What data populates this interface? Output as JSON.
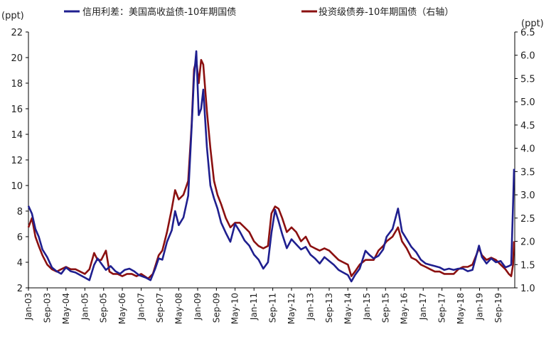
{
  "chart_data": {
    "type": "line",
    "axis_unit_left": "(ppt)",
    "axis_unit_right": "(ppt)",
    "legend": {
      "placement": "top",
      "items": [
        {
          "label": "信用利差：美国高收益债-10年期国债",
          "color": "#1f1f8f"
        },
        {
          "label": "投资级债券-10年期国债（右轴）",
          "color": "#8b1010"
        }
      ]
    },
    "x_ticks": [
      "Jan-03",
      "Sep-03",
      "May-04",
      "Jan-05",
      "Sep-05",
      "May-06",
      "Jan-07",
      "Sep-07",
      "May-08",
      "Jan-09",
      "Sep-09",
      "May-10",
      "Jan-11",
      "Sep-11",
      "May-12",
      "Jan-13",
      "Sep-13",
      "May-14",
      "Jan-15",
      "Sep-15",
      "May-16",
      "Jan-17",
      "Sep-17",
      "May-18",
      "Jan-19",
      "Sep-19"
    ],
    "y_left": {
      "min": 2,
      "max": 22,
      "ticks": [
        2,
        4,
        6,
        8,
        10,
        12,
        14,
        16,
        18,
        20,
        22
      ]
    },
    "y_right": {
      "min": 1.0,
      "max": 6.5,
      "ticks": [
        "1.0",
        "1.5",
        "2.0",
        "2.5",
        "3.0",
        "3.5",
        "4.0",
        "4.5",
        "5.0",
        "5.5",
        "6.0",
        "6.5"
      ],
      "tick_values": [
        1.0,
        1.5,
        2.0,
        2.5,
        3.0,
        3.5,
        4.0,
        4.5,
        5.0,
        5.5,
        6.0,
        6.5
      ]
    },
    "grid": false,
    "series": [
      {
        "name": "信用利差：美国高收益债-10年期国债",
        "axis": "left",
        "color": "#1f1f8f",
        "points": [
          [
            "2003-01-01",
            8.4
          ],
          [
            "2003-02-15",
            7.8
          ],
          [
            "2003-04-01",
            6.6
          ],
          [
            "2003-05-15",
            6.0
          ],
          [
            "2003-07-01",
            5.0
          ],
          [
            "2003-09-01",
            4.4
          ],
          [
            "2003-11-01",
            3.6
          ],
          [
            "2004-01-01",
            3.3
          ],
          [
            "2004-03-01",
            3.1
          ],
          [
            "2004-05-01",
            3.6
          ],
          [
            "2004-07-01",
            3.3
          ],
          [
            "2004-09-01",
            3.2
          ],
          [
            "2004-11-01",
            3.0
          ],
          [
            "2005-01-01",
            2.8
          ],
          [
            "2005-03-01",
            2.6
          ],
          [
            "2005-05-01",
            3.8
          ],
          [
            "2005-06-15",
            4.3
          ],
          [
            "2005-08-01",
            3.9
          ],
          [
            "2005-10-01",
            3.4
          ],
          [
            "2005-12-01",
            3.7
          ],
          [
            "2006-02-01",
            3.3
          ],
          [
            "2006-04-01",
            3.1
          ],
          [
            "2006-06-01",
            3.4
          ],
          [
            "2006-08-01",
            3.5
          ],
          [
            "2006-10-01",
            3.3
          ],
          [
            "2006-12-01",
            3.0
          ],
          [
            "2007-03-01",
            2.8
          ],
          [
            "2007-05-01",
            2.6
          ],
          [
            "2007-07-01",
            3.5
          ],
          [
            "2007-08-15",
            4.3
          ],
          [
            "2007-10-01",
            4.2
          ],
          [
            "2007-12-01",
            5.6
          ],
          [
            "2008-02-01",
            6.5
          ],
          [
            "2008-03-15",
            8.0
          ],
          [
            "2008-05-01",
            6.9
          ],
          [
            "2008-07-01",
            7.5
          ],
          [
            "2008-09-01",
            9.2
          ],
          [
            "2008-10-15",
            14.5
          ],
          [
            "2008-11-15",
            18.5
          ],
          [
            "2008-12-15",
            20.5
          ],
          [
            "2009-01-15",
            15.5
          ],
          [
            "2009-02-15",
            16.0
          ],
          [
            "2009-03-15",
            17.5
          ],
          [
            "2009-05-01",
            13.0
          ],
          [
            "2009-06-15",
            10.0
          ],
          [
            "2009-08-01",
            9.0
          ],
          [
            "2009-09-15",
            8.2
          ],
          [
            "2009-11-01",
            7.1
          ],
          [
            "2010-01-01",
            6.3
          ],
          [
            "2010-03-01",
            5.6
          ],
          [
            "2010-05-01",
            7.0
          ],
          [
            "2010-07-01",
            6.4
          ],
          [
            "2010-09-01",
            5.7
          ],
          [
            "2010-11-01",
            5.3
          ],
          [
            "2011-01-01",
            4.6
          ],
          [
            "2011-03-01",
            4.2
          ],
          [
            "2011-05-01",
            3.5
          ],
          [
            "2011-07-01",
            4.0
          ],
          [
            "2011-08-15",
            6.3
          ],
          [
            "2011-10-01",
            8.1
          ],
          [
            "2011-11-15",
            7.2
          ],
          [
            "2012-01-01",
            6.2
          ],
          [
            "2012-03-01",
            5.1
          ],
          [
            "2012-05-01",
            5.8
          ],
          [
            "2012-07-01",
            5.4
          ],
          [
            "2012-09-01",
            5.0
          ],
          [
            "2012-11-01",
            5.2
          ],
          [
            "2013-01-01",
            4.6
          ],
          [
            "2013-03-01",
            4.3
          ],
          [
            "2013-05-01",
            3.9
          ],
          [
            "2013-07-01",
            4.4
          ],
          [
            "2013-09-01",
            4.1
          ],
          [
            "2013-11-01",
            3.8
          ],
          [
            "2014-01-01",
            3.4
          ],
          [
            "2014-03-01",
            3.2
          ],
          [
            "2014-05-01",
            3.0
          ],
          [
            "2014-06-15",
            2.5
          ],
          [
            "2014-08-01",
            3.0
          ],
          [
            "2014-10-01",
            3.5
          ],
          [
            "2014-12-15",
            4.9
          ],
          [
            "2015-02-01",
            4.6
          ],
          [
            "2015-04-01",
            4.3
          ],
          [
            "2015-06-01",
            4.5
          ],
          [
            "2015-08-01",
            5.0
          ],
          [
            "2015-09-15",
            6.0
          ],
          [
            "2015-12-01",
            6.6
          ],
          [
            "2016-02-10",
            8.2
          ],
          [
            "2016-04-01",
            6.4
          ],
          [
            "2016-06-01",
            5.8
          ],
          [
            "2016-08-01",
            5.2
          ],
          [
            "2016-10-01",
            4.8
          ],
          [
            "2016-12-01",
            4.2
          ],
          [
            "2017-02-01",
            3.9
          ],
          [
            "2017-04-01",
            3.8
          ],
          [
            "2017-06-01",
            3.7
          ],
          [
            "2017-08-01",
            3.6
          ],
          [
            "2017-10-01",
            3.4
          ],
          [
            "2017-12-01",
            3.5
          ],
          [
            "2018-02-01",
            3.4
          ],
          [
            "2018-04-01",
            3.5
          ],
          [
            "2018-06-01",
            3.5
          ],
          [
            "2018-08-01",
            3.3
          ],
          [
            "2018-10-01",
            3.4
          ],
          [
            "2018-12-25",
            5.3
          ],
          [
            "2019-02-01",
            4.4
          ],
          [
            "2019-04-01",
            3.9
          ],
          [
            "2019-06-01",
            4.3
          ],
          [
            "2019-08-01",
            4.0
          ],
          [
            "2019-10-01",
            4.1
          ],
          [
            "2019-12-01",
            3.6
          ],
          [
            "2020-01-15",
            3.7
          ],
          [
            "2020-02-15",
            3.8
          ],
          [
            "2020-03-10",
            8.5
          ],
          [
            "2020-03-23",
            11.3
          ]
        ]
      },
      {
        "name": "投资级债券-10年期国债（右轴）",
        "axis": "right",
        "color": "#8b1010",
        "points": [
          [
            "2003-01-01",
            2.3
          ],
          [
            "2003-02-15",
            2.5
          ],
          [
            "2003-04-01",
            2.1
          ],
          [
            "2003-05-15",
            1.9
          ],
          [
            "2003-07-01",
            1.7
          ],
          [
            "2003-09-01",
            1.5
          ],
          [
            "2003-11-01",
            1.4
          ],
          [
            "2004-01-01",
            1.35
          ],
          [
            "2004-03-01",
            1.4
          ],
          [
            "2004-05-01",
            1.45
          ],
          [
            "2004-07-01",
            1.4
          ],
          [
            "2004-09-01",
            1.4
          ],
          [
            "2004-11-01",
            1.35
          ],
          [
            "2005-01-01",
            1.3
          ],
          [
            "2005-03-01",
            1.4
          ],
          [
            "2005-05-01",
            1.75
          ],
          [
            "2005-06-15",
            1.6
          ],
          [
            "2005-08-01",
            1.6
          ],
          [
            "2005-10-01",
            1.8
          ],
          [
            "2005-11-15",
            1.35
          ],
          [
            "2006-01-01",
            1.3
          ],
          [
            "2006-03-01",
            1.3
          ],
          [
            "2006-05-01",
            1.25
          ],
          [
            "2006-07-01",
            1.3
          ],
          [
            "2006-09-01",
            1.3
          ],
          [
            "2006-11-01",
            1.25
          ],
          [
            "2007-01-01",
            1.3
          ],
          [
            "2007-04-01",
            1.2
          ],
          [
            "2007-06-01",
            1.3
          ],
          [
            "2007-08-15",
            1.7
          ],
          [
            "2007-10-01",
            1.8
          ],
          [
            "2007-12-01",
            2.2
          ],
          [
            "2008-02-01",
            2.7
          ],
          [
            "2008-03-15",
            3.1
          ],
          [
            "2008-05-01",
            2.9
          ],
          [
            "2008-07-01",
            3.0
          ],
          [
            "2008-09-01",
            3.3
          ],
          [
            "2008-10-15",
            4.5
          ],
          [
            "2008-11-15",
            5.7
          ],
          [
            "2008-12-15",
            5.9
          ],
          [
            "2009-01-15",
            5.4
          ],
          [
            "2009-02-15",
            5.9
          ],
          [
            "2009-03-15",
            5.8
          ],
          [
            "2009-05-01",
            4.8
          ],
          [
            "2009-06-15",
            4.0
          ],
          [
            "2009-08-01",
            3.3
          ],
          [
            "2009-09-15",
            3.0
          ],
          [
            "2009-11-01",
            2.8
          ],
          [
            "2010-01-01",
            2.5
          ],
          [
            "2010-03-01",
            2.3
          ],
          [
            "2010-05-01",
            2.4
          ],
          [
            "2010-07-01",
            2.4
          ],
          [
            "2010-09-01",
            2.3
          ],
          [
            "2010-11-01",
            2.2
          ],
          [
            "2011-01-01",
            2.0
          ],
          [
            "2011-03-01",
            1.9
          ],
          [
            "2011-05-01",
            1.85
          ],
          [
            "2011-07-01",
            1.9
          ],
          [
            "2011-08-15",
            2.6
          ],
          [
            "2011-10-01",
            2.75
          ],
          [
            "2011-11-15",
            2.7
          ],
          [
            "2012-01-01",
            2.5
          ],
          [
            "2012-03-01",
            2.2
          ],
          [
            "2012-05-01",
            2.3
          ],
          [
            "2012-07-01",
            2.2
          ],
          [
            "2012-09-01",
            2.0
          ],
          [
            "2012-11-01",
            2.1
          ],
          [
            "2013-01-01",
            1.9
          ],
          [
            "2013-03-01",
            1.85
          ],
          [
            "2013-05-01",
            1.8
          ],
          [
            "2013-07-01",
            1.85
          ],
          [
            "2013-09-01",
            1.8
          ],
          [
            "2013-11-01",
            1.7
          ],
          [
            "2014-01-01",
            1.6
          ],
          [
            "2014-03-01",
            1.55
          ],
          [
            "2014-05-01",
            1.5
          ],
          [
            "2014-06-15",
            1.25
          ],
          [
            "2014-08-01",
            1.35
          ],
          [
            "2014-10-01",
            1.5
          ],
          [
            "2014-12-15",
            1.6
          ],
          [
            "2015-02-01",
            1.6
          ],
          [
            "2015-04-01",
            1.6
          ],
          [
            "2015-06-01",
            1.8
          ],
          [
            "2015-08-01",
            1.9
          ],
          [
            "2015-09-15",
            2.0
          ],
          [
            "2015-12-01",
            2.1
          ],
          [
            "2016-02-10",
            2.3
          ],
          [
            "2016-04-01",
            2.0
          ],
          [
            "2016-06-01",
            1.85
          ],
          [
            "2016-08-01",
            1.65
          ],
          [
            "2016-10-01",
            1.6
          ],
          [
            "2016-12-01",
            1.5
          ],
          [
            "2017-02-01",
            1.45
          ],
          [
            "2017-04-01",
            1.4
          ],
          [
            "2017-06-01",
            1.35
          ],
          [
            "2017-08-01",
            1.35
          ],
          [
            "2017-10-01",
            1.3
          ],
          [
            "2017-12-01",
            1.3
          ],
          [
            "2018-02-01",
            1.3
          ],
          [
            "2018-04-01",
            1.4
          ],
          [
            "2018-06-01",
            1.45
          ],
          [
            "2018-08-01",
            1.45
          ],
          [
            "2018-10-01",
            1.5
          ],
          [
            "2018-12-25",
            1.85
          ],
          [
            "2019-02-01",
            1.7
          ],
          [
            "2019-04-01",
            1.6
          ],
          [
            "2019-06-01",
            1.65
          ],
          [
            "2019-08-01",
            1.6
          ],
          [
            "2019-10-01",
            1.5
          ],
          [
            "2019-12-01",
            1.4
          ],
          [
            "2020-01-15",
            1.3
          ],
          [
            "2020-02-15",
            1.25
          ],
          [
            "2020-03-10",
            1.5
          ],
          [
            "2020-03-23",
            2.0
          ]
        ]
      }
    ]
  }
}
